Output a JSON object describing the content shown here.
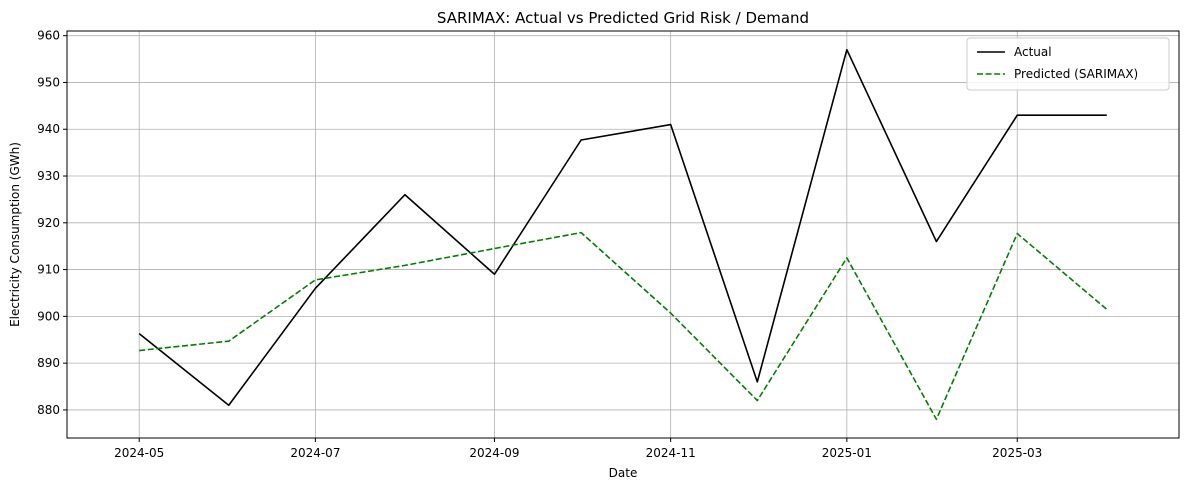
{
  "chart_data": {
    "type": "line",
    "title": "SARIMAX: Actual vs Predicted Grid Risk / Demand",
    "xlabel": "Date",
    "ylabel": "Electricity Consumption (GWh)",
    "x": [
      "2024-05-01",
      "2024-06-01",
      "2024-07-01",
      "2024-08-01",
      "2024-09-01",
      "2024-10-01",
      "2024-11-01",
      "2024-12-01",
      "2025-01-01",
      "2025-02-01",
      "2025-03-01",
      "2025-04-01"
    ],
    "series": [
      {
        "name": "Actual",
        "color": "#000000",
        "dash": "solid",
        "values": [
          896.3,
          881.0,
          906.0,
          926.0,
          909.0,
          937.7,
          941.0,
          886.0,
          957.0,
          916.0,
          943.0,
          943.0
        ]
      },
      {
        "name": "Predicted (SARIMAX)",
        "color": "#008000",
        "dash": "dashed",
        "values": [
          892.7,
          894.7,
          907.8,
          910.9,
          914.5,
          917.9,
          900.7,
          882.0,
          912.5,
          878.0,
          917.7,
          901.5
        ]
      }
    ],
    "xticks": [
      {
        "date": "2024-05-01",
        "label": "2024-05"
      },
      {
        "date": "2024-07-01",
        "label": "2024-07"
      },
      {
        "date": "2024-09-01",
        "label": "2024-09"
      },
      {
        "date": "2024-11-01",
        "label": "2024-11"
      },
      {
        "date": "2025-01-01",
        "label": "2025-01"
      },
      {
        "date": "2025-03-01",
        "label": "2025-03"
      }
    ],
    "yticks": [
      880,
      890,
      900,
      910,
      920,
      930,
      940,
      950,
      960
    ],
    "xlim": [
      "2024-04-06",
      "2025-04-26"
    ],
    "ylim": [
      874.0,
      961.0
    ],
    "grid": true,
    "legend_position": "top-right"
  }
}
